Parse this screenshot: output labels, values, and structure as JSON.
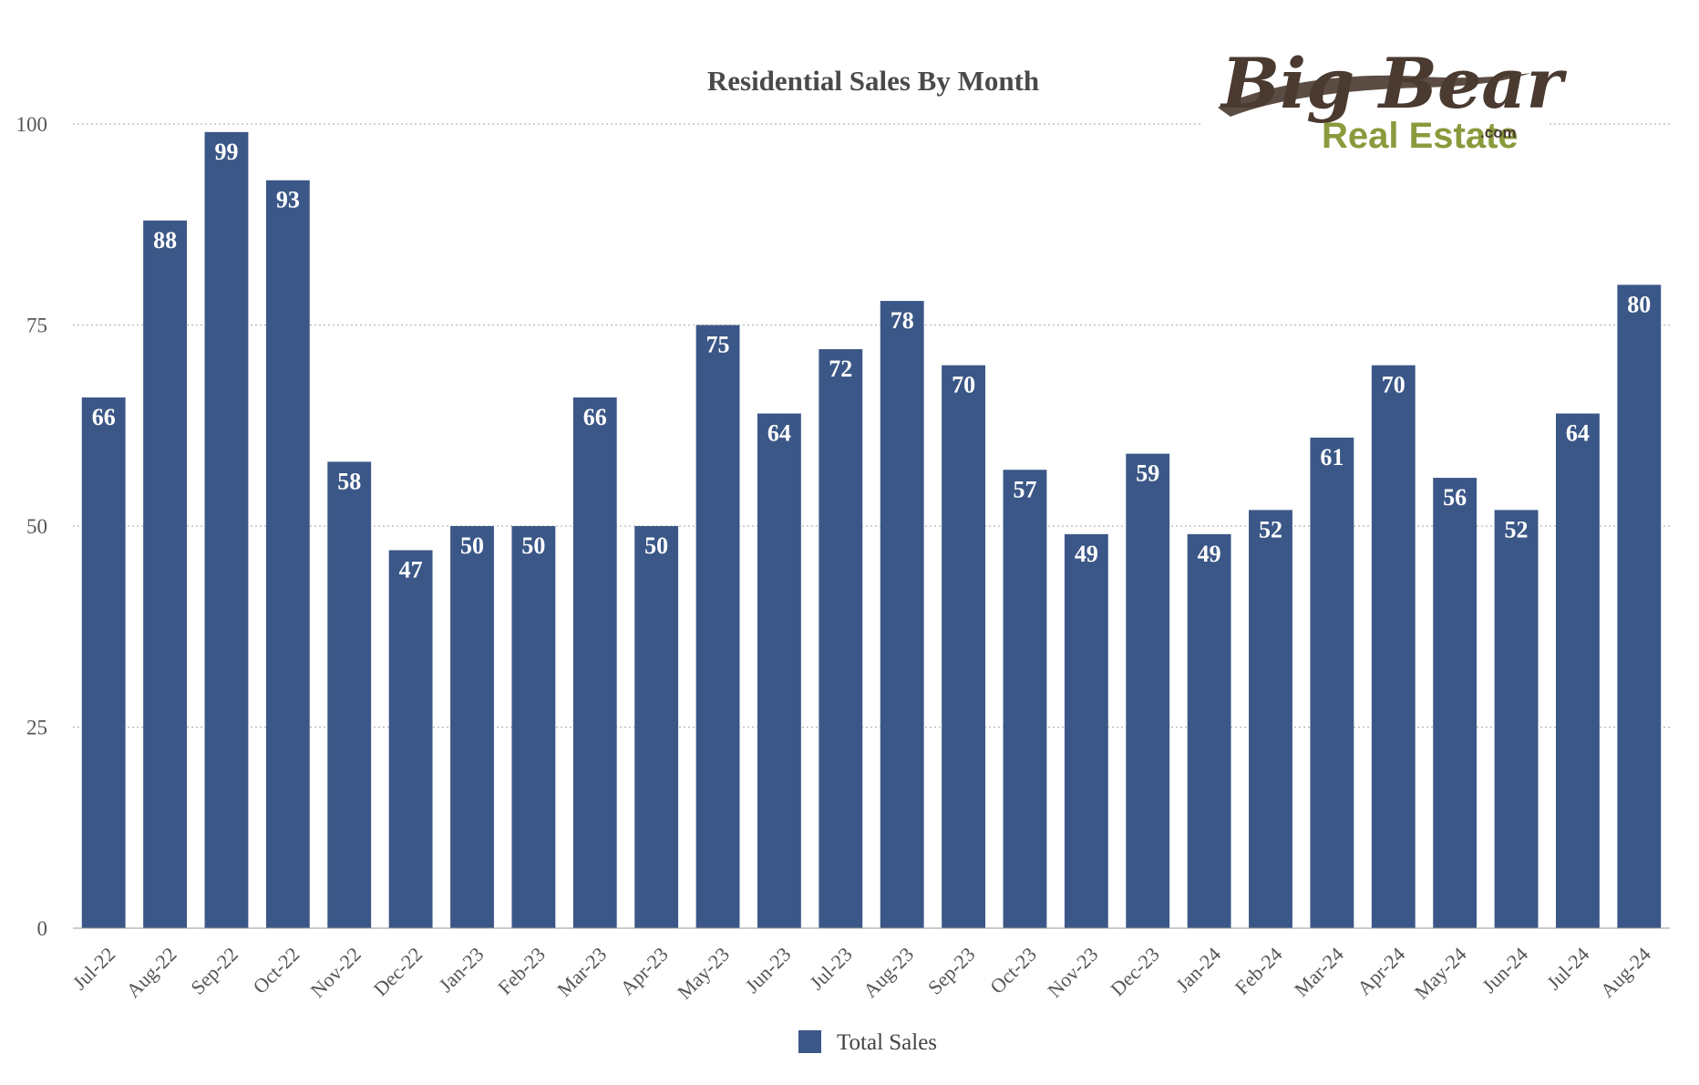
{
  "chart_data": {
    "type": "bar",
    "title": "Residential Sales By Month",
    "xlabel": "",
    "ylabel": "",
    "categories": [
      "Jul-22",
      "Aug-22",
      "Sep-22",
      "Oct-22",
      "Nov-22",
      "Dec-22",
      "Jan-23",
      "Feb-23",
      "Mar-23",
      "Apr-23",
      "May-23",
      "Jun-23",
      "Jul-23",
      "Aug-23",
      "Sep-23",
      "Oct-23",
      "Nov-23",
      "Dec-23",
      "Jan-24",
      "Feb-24",
      "Mar-24",
      "Apr-24",
      "May-24",
      "Jun-24",
      "Jul-24",
      "Aug-24"
    ],
    "series": [
      {
        "name": "Total Sales",
        "values": [
          66,
          88,
          99,
          93,
          58,
          47,
          50,
          50,
          66,
          50,
          75,
          64,
          72,
          78,
          70,
          57,
          49,
          59,
          49,
          52,
          61,
          70,
          56,
          52,
          64,
          80
        ],
        "color": "#3b5787"
      }
    ],
    "ylim": [
      0,
      100
    ],
    "yticks": [
      0,
      25,
      50,
      75,
      100
    ],
    "grid": true,
    "grid_style": "dotted",
    "legend_position": "bottom-center",
    "data_labels": "inside-top",
    "x_tick_rotation": -45
  },
  "logo": {
    "line1": "Big Bear",
    "line2": "Real Estate",
    "suffix": ".com",
    "colors": {
      "brand_brown": "#4a3a30",
      "brand_green": "#8a9a3c"
    }
  }
}
